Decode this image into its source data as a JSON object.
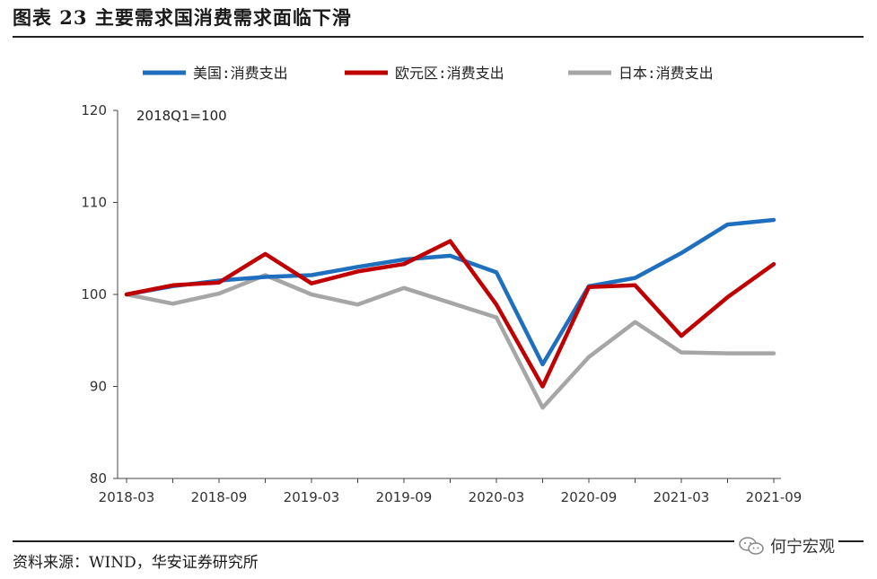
{
  "header": {
    "title": "图表 23 主要需求国消费需求面临下滑"
  },
  "footer": {
    "source": "资料来源：WIND，华安证券研究所",
    "watermark": "何宁宏观"
  },
  "chart_data": {
    "type": "line",
    "title": "主要需求国消费需求面临下滑",
    "note": "2018Q1=100",
    "xlabel": "",
    "ylabel": "",
    "ylim": [
      80,
      120
    ],
    "yticks": [
      "80",
      "90",
      "100",
      "110",
      "120"
    ],
    "x": [
      "2018-03",
      "2018-06",
      "2018-09",
      "2018-12",
      "2019-03",
      "2019-06",
      "2019-09",
      "2019-12",
      "2020-03",
      "2020-06",
      "2020-09",
      "2020-12",
      "2021-03",
      "2021-06",
      "2021-09"
    ],
    "xticks": [
      "2018-03",
      "2018-09",
      "2019-03",
      "2019-09",
      "2020-03",
      "2020-09",
      "2021-03",
      "2021-09"
    ],
    "legend_position": "top",
    "series": [
      {
        "name": "美国:消费支出",
        "color": "#1f6fbf",
        "values": [
          100.0,
          100.9,
          101.5,
          101.9,
          102.1,
          103.0,
          103.8,
          104.2,
          102.4,
          92.4,
          100.9,
          101.8,
          104.5,
          107.6,
          108.1
        ]
      },
      {
        "name": "欧元区:消费支出",
        "color": "#c00000",
        "values": [
          100.0,
          101.0,
          101.3,
          104.4,
          101.2,
          102.5,
          103.3,
          105.8,
          98.9,
          90.0,
          100.8,
          101.0,
          95.5,
          99.7,
          103.3
        ]
      },
      {
        "name": "日本:消费支出",
        "color": "#a6a6a6",
        "values": [
          100.0,
          99.0,
          100.1,
          102.1,
          100.0,
          98.9,
          100.7,
          99.1,
          97.5,
          87.7,
          93.2,
          97.0,
          93.7,
          93.6,
          93.6
        ]
      }
    ]
  }
}
